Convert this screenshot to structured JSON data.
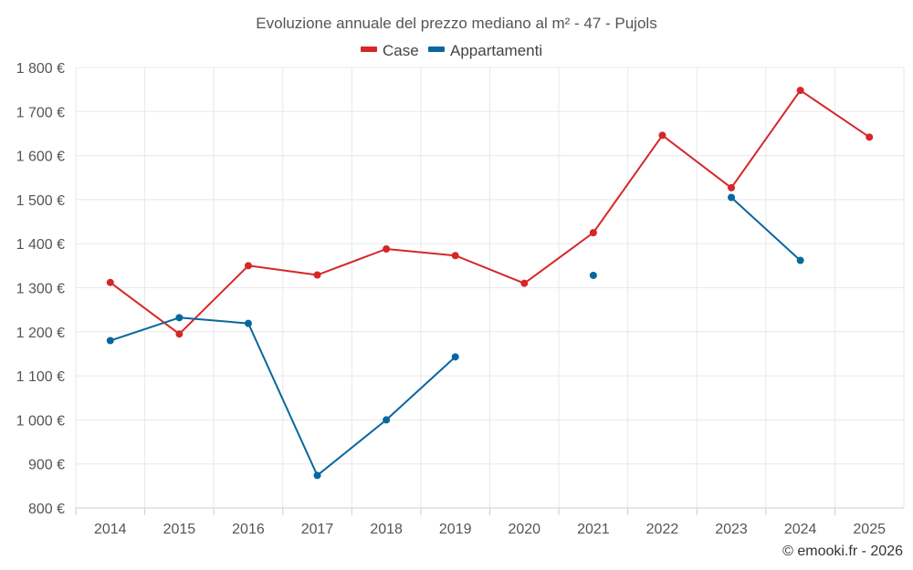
{
  "chart_data": {
    "type": "line",
    "title": "Evoluzione annuale del prezzo mediano al m² - 47 - Pujols",
    "categories": [
      "2014",
      "2015",
      "2016",
      "2017",
      "2018",
      "2019",
      "2020",
      "2021",
      "2022",
      "2023",
      "2024",
      "2025"
    ],
    "ylim": [
      800,
      1800
    ],
    "yticks": [
      800,
      900,
      1000,
      1100,
      1200,
      1300,
      1400,
      1500,
      1600,
      1700,
      1800
    ],
    "ytick_labels": [
      "800 €",
      "900 €",
      "1 000 €",
      "1 100 €",
      "1 200 €",
      "1 300 €",
      "1 400 €",
      "1 500 €",
      "1 600 €",
      "1 700 €",
      "1 800 €"
    ],
    "grid": true,
    "legend_position": "top-center",
    "series": [
      {
        "name": "Case",
        "color": "#d62728",
        "values": [
          1312,
          1195,
          1350,
          1329,
          1388,
          1373,
          1310,
          1425,
          1646,
          1527,
          1748,
          1642
        ]
      },
      {
        "name": "Appartamenti",
        "color": "#08679e",
        "values": [
          1180,
          1232,
          1219,
          874,
          1000,
          1143,
          null,
          1328,
          null,
          1505,
          1362,
          null
        ]
      }
    ]
  },
  "credit": "© emooki.fr - 2026"
}
